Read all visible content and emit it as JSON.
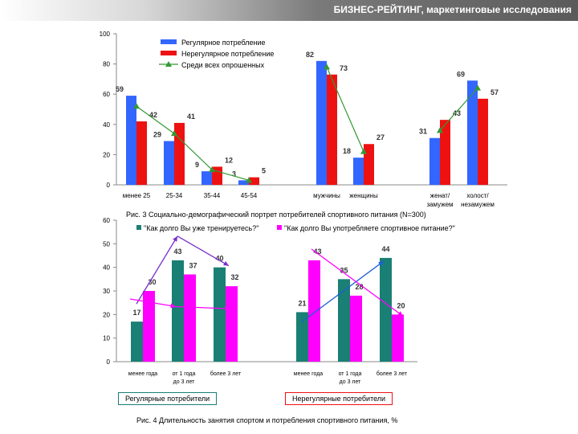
{
  "header": {
    "title": "БИЗНЕС-РЕЙТИНГ, маркетинговые исследования"
  },
  "colors": {
    "blue": "#3366ff",
    "red": "#ee1111",
    "green": "#339933",
    "teal": "#1a7f74",
    "magenta": "#ff00ff",
    "purple": "#7a2fd0",
    "grey": "#888888"
  },
  "chart_data": [
    {
      "type": "bar",
      "title": "Рис. 3 Социально-демографический портрет потребителей спортивного питания (N=300)",
      "ylim": [
        0,
        100
      ],
      "yticks": [
        0,
        20,
        40,
        60,
        80,
        100
      ],
      "categories": [
        "менее 25",
        "25-34",
        "35-44",
        "45-54",
        "мужчины",
        "женщины",
        "женат/ замужем",
        "холост/ незамужем"
      ],
      "series": [
        {
          "name": "Регулярное потребление",
          "values": [
            59,
            29,
            9,
            3,
            82,
            18,
            31,
            69
          ]
        },
        {
          "name": "Нерегулярное потребление",
          "values": [
            42,
            41,
            12,
            5,
            73,
            27,
            43,
            57
          ]
        },
        {
          "name": "Среди всех опрошенных",
          "values": [
            52,
            34,
            10,
            3,
            78,
            22,
            36,
            64
          ]
        }
      ]
    },
    {
      "type": "bar",
      "title": "Рис. 4 Длительность занятия спортом и потребления спортивного питания, %",
      "ylim": [
        0,
        60
      ],
      "yticks": [
        0,
        10,
        20,
        30,
        40,
        50,
        60
      ],
      "categories": [
        "менее года",
        "от 1 года до 3 лет",
        "более 3 лет",
        "менее года",
        "от 1 года до 3 лет",
        "более 3 лет"
      ],
      "series": [
        {
          "name": "\"Как долго Вы уже тренируетесь?\"",
          "values": [
            17,
            43,
            40,
            21,
            35,
            44
          ]
        },
        {
          "name": "\"Как долго Вы употребляете спортивное питание?\"",
          "values": [
            30,
            37,
            32,
            43,
            28,
            20
          ]
        }
      ],
      "groups": [
        "Регулярные потребители",
        "Нерегулярные потребители"
      ]
    }
  ]
}
